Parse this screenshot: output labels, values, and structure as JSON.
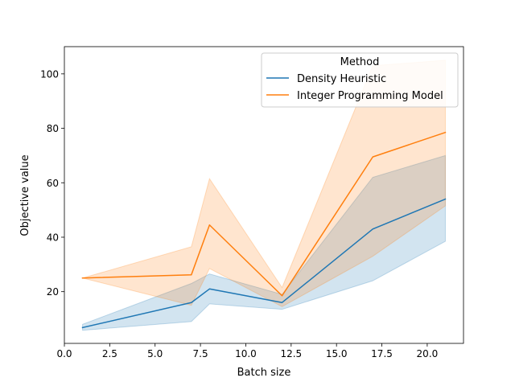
{
  "chart_data": {
    "type": "line",
    "xlabel": "Batch size",
    "ylabel": "Objective value",
    "xlim": [
      0,
      22
    ],
    "ylim": [
      1,
      110
    ],
    "xticks": [
      0.0,
      2.5,
      5.0,
      7.5,
      10.0,
      12.5,
      15.0,
      17.5,
      20.0
    ],
    "xtick_labels": [
      "0.0",
      "2.5",
      "5.0",
      "7.5",
      "10.0",
      "12.5",
      "15.0",
      "17.5",
      "20.0"
    ],
    "yticks": [
      20,
      40,
      60,
      80,
      100
    ],
    "ytick_labels": [
      "20",
      "40",
      "60",
      "80",
      "100"
    ],
    "grid": false,
    "legend": {
      "title": "Method",
      "placement": "top-right"
    },
    "series": [
      {
        "name": "Density Heuristic",
        "color": "#1f77b4",
        "x": [
          1,
          7,
          8,
          12,
          17,
          21
        ],
        "y": [
          6.8,
          16,
          21,
          16,
          43,
          54
        ],
        "ci_low": [
          5.8,
          9,
          15.5,
          13.5,
          24,
          38.5
        ],
        "ci_high": [
          8,
          23,
          26.5,
          19,
          62,
          70
        ]
      },
      {
        "name": "Integer Programming Model",
        "color": "#ff7f0e",
        "x": [
          1,
          7,
          8,
          12,
          17,
          21
        ],
        "y": [
          25,
          26.2,
          44.5,
          18.5,
          69.5,
          78.5
        ],
        "ci_low": [
          25,
          15,
          28.5,
          14.5,
          33,
          51.5
        ],
        "ci_high": [
          25,
          36.5,
          61.5,
          21.5,
          103,
          105
        ]
      }
    ]
  }
}
